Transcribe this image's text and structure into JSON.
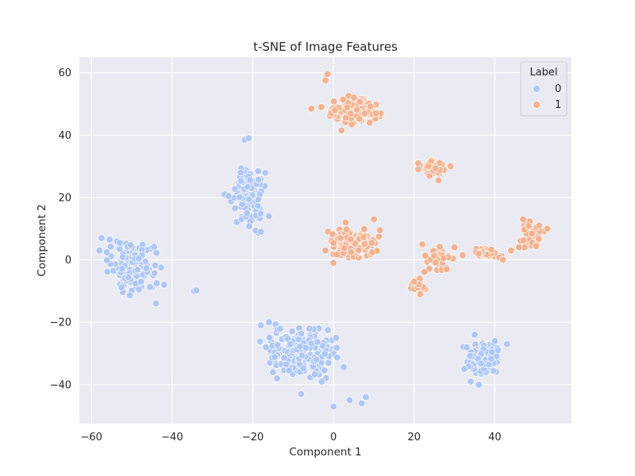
{
  "chart_data": {
    "type": "scatter",
    "title": "t-SNE of Image Features",
    "xlabel": "Component 1",
    "ylabel": "Component 2",
    "xlim": [
      -63,
      59
    ],
    "ylim": [
      -52.5,
      65
    ],
    "xticks": [
      -60,
      -40,
      -20,
      0,
      20,
      40
    ],
    "yticks": [
      -40,
      -20,
      0,
      20,
      40,
      60
    ],
    "xtick_labels": [
      "−60",
      "−40",
      "−20",
      "0",
      "20",
      "40"
    ],
    "ytick_labels": [
      "−40",
      "−20",
      "0",
      "20",
      "40",
      "60"
    ],
    "grid": true,
    "background": "#eaeaf2",
    "legend": {
      "title": "Label",
      "position": "top-right"
    },
    "series": [
      {
        "name": "0",
        "color": "#aec7f8",
        "clusters": [
          {
            "center": [
              -50,
              -2
            ],
            "spread": [
              4.5,
              5.5
            ],
            "n": 160
          },
          {
            "center": [
              -21,
              21
            ],
            "spread": [
              2.8,
              8
            ],
            "n": 120
          },
          {
            "center": [
              -8,
              -30
            ],
            "spread": [
              7,
              6
            ],
            "n": 200
          },
          {
            "center": [
              37,
              -32
            ],
            "spread": [
              3.2,
              4
            ],
            "n": 110
          }
        ],
        "points": [
          [
            -57.5,
            7
          ],
          [
            -58,
            3
          ],
          [
            -55.5,
            6.5
          ],
          [
            -53,
            5.5
          ],
          [
            -44,
            -14
          ],
          [
            -42,
            -8
          ],
          [
            -34.5,
            -10
          ],
          [
            -34,
            -9.8
          ],
          [
            -27,
            21
          ],
          [
            -26,
            20.5
          ],
          [
            -22,
            38.5
          ],
          [
            -21,
            39
          ],
          [
            -18,
            9
          ],
          [
            -16,
            14
          ],
          [
            -18,
            -21
          ],
          [
            -16,
            -20
          ],
          [
            -14,
            -38
          ],
          [
            -8,
            -43
          ],
          [
            0,
            -47
          ],
          [
            4,
            -45
          ],
          [
            7,
            -46
          ],
          [
            8,
            -44
          ],
          [
            -15,
            -36
          ],
          [
            33,
            -28
          ],
          [
            35,
            -24
          ],
          [
            40,
            -26
          ],
          [
            43,
            -27
          ],
          [
            36,
            -40
          ],
          [
            34,
            -39
          ]
        ]
      },
      {
        "name": "1",
        "color": "#f4b28f",
        "clusters": [
          {
            "center": [
              5,
              48
            ],
            "spread": [
              4.5,
              3
            ],
            "n": 120
          },
          {
            "center": [
              24.5,
              30
            ],
            "spread": [
              2.3,
              2
            ],
            "n": 50
          },
          {
            "center": [
              5,
              5
            ],
            "spread": [
              4.2,
              3.6
            ],
            "n": 160
          },
          {
            "center": [
              49,
              8
            ],
            "spread": [
              2.2,
              3
            ],
            "n": 45
          },
          {
            "center": [
              26,
              0
            ],
            "spread": [
              2.5,
              3
            ],
            "n": 40
          },
          {
            "center": [
              38,
              2
            ],
            "spread": [
              3.5,
              1.2
            ],
            "n": 35
          },
          {
            "center": [
              21,
              -8
            ],
            "spread": [
              1.3,
              1.8
            ],
            "n": 20
          }
        ],
        "points": [
          [
            -5.5,
            48.5
          ],
          [
            -3,
            49
          ],
          [
            -2,
            58
          ],
          [
            -1.5,
            59.5
          ],
          [
            -2,
            57.5
          ],
          [
            2,
            41.5
          ],
          [
            9,
            44
          ],
          [
            10.5,
            47
          ],
          [
            21,
            31
          ],
          [
            26,
            25.5
          ],
          [
            29,
            30
          ],
          [
            22,
            5
          ],
          [
            30,
            4
          ],
          [
            32,
            1.5
          ],
          [
            20,
            -7
          ],
          [
            21.5,
            -11
          ],
          [
            28,
            -3
          ],
          [
            36,
            2
          ],
          [
            42,
            0
          ],
          [
            44,
            3
          ],
          [
            46,
            4
          ],
          [
            51,
            11
          ],
          [
            53,
            10
          ],
          [
            47,
            13
          ],
          [
            0,
            -1
          ],
          [
            -2,
            3
          ],
          [
            11.5,
            9.5
          ],
          [
            10,
            13
          ],
          [
            3,
            12
          ]
        ]
      }
    ]
  }
}
